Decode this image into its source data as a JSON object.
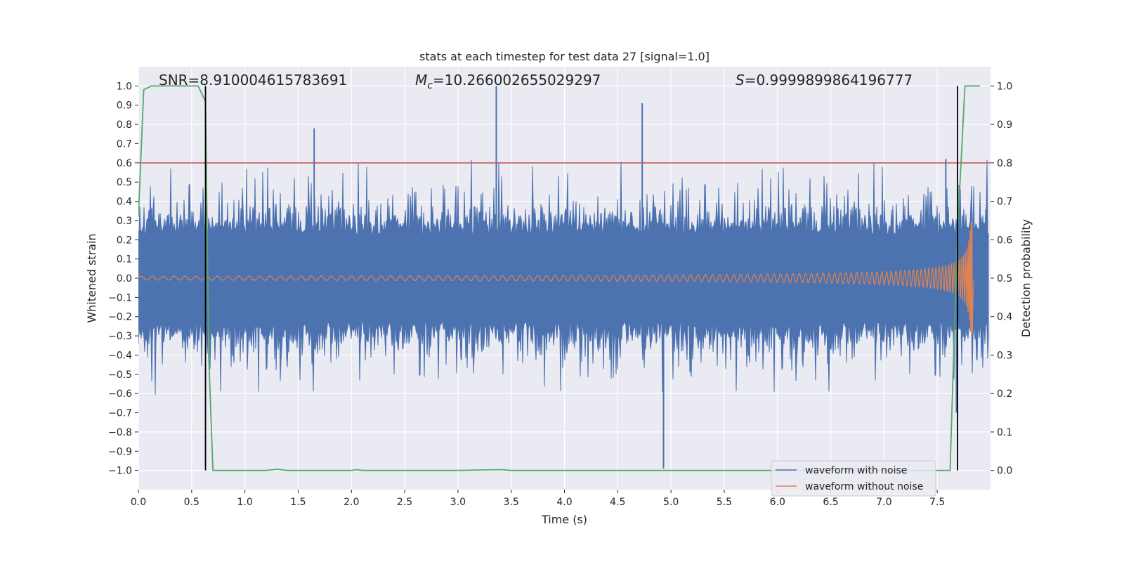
{
  "chart_data": {
    "type": "line",
    "title": "stats at each timestep for test data 27 [signal=1.0]",
    "xlabel": "Time (s)",
    "ylabel": "Whitened strain",
    "y2label": "Detection probability",
    "xlim": [
      0.0,
      8.0
    ],
    "ylim": [
      -1.1,
      1.1
    ],
    "y2lim": [
      -0.05,
      1.05
    ],
    "xticks": [
      0.0,
      0.5,
      1.0,
      1.5,
      2.0,
      2.5,
      3.0,
      3.5,
      4.0,
      4.5,
      5.0,
      5.5,
      6.0,
      6.5,
      7.0,
      7.5
    ],
    "xtick_labels": [
      "0.0",
      "0.5",
      "1.0",
      "1.5",
      "2.0",
      "2.5",
      "3.0",
      "3.5",
      "4.0",
      "4.5",
      "5.0",
      "5.5",
      "6.0",
      "6.5",
      "7.0",
      "7.5"
    ],
    "yticks": [
      1.0,
      0.9,
      0.8,
      0.7,
      0.6,
      0.5,
      0.4,
      0.3,
      0.2,
      0.1,
      0.0,
      -0.1,
      -0.2,
      -0.3,
      -0.4,
      -0.5,
      -0.6,
      -0.7,
      -0.8,
      -0.9,
      -1.0
    ],
    "ytick_labels": [
      "1.0",
      "0.9",
      "0.8",
      "0.7",
      "0.6",
      "0.5",
      "0.4",
      "0.3",
      "0.2",
      "0.1",
      "0.0",
      "−0.1",
      "−0.2",
      "−0.3",
      "−0.4",
      "−0.5",
      "−0.6",
      "−0.7",
      "−0.8",
      "−0.9",
      "−1.0"
    ],
    "y2ticks": [
      1.0,
      0.9,
      0.8,
      0.7,
      0.6,
      0.5,
      0.4,
      0.3,
      0.2,
      0.1,
      0.0
    ],
    "y2tick_labels": [
      "1.0",
      "0.9",
      "0.8",
      "0.7",
      "0.6",
      "0.5",
      "0.4",
      "0.3",
      "0.2",
      "0.1",
      "0.0"
    ],
    "annotations": {
      "snr": "SNR=8.910004615783691",
      "mc_symbol": "M",
      "mc_subscript": "c",
      "mc_value": "=10.266002655029297",
      "s_symbol": "S",
      "s_value": "=0.9999899864196777"
    },
    "threshold": {
      "value": 0.8,
      "axis": "y2",
      "color": "#c44e52"
    },
    "vertical_markers": [
      0.63,
      7.69
    ],
    "series": [
      {
        "name": "waveform with noise",
        "color": "#4c72b0",
        "kind": "noise",
        "envelope_typical": 0.3,
        "envelope_max": 0.63,
        "spikes": [
          {
            "x": 3.36,
            "y": 1.0
          },
          {
            "x": 4.73,
            "y": 0.91
          },
          {
            "x": 4.93,
            "y": -0.99
          },
          {
            "x": 1.65,
            "y": 0.78
          },
          {
            "x": 7.68,
            "y": -0.7
          },
          {
            "x": 7.58,
            "y": 0.62
          }
        ]
      },
      {
        "name": "waveform without noise",
        "color": "#dd8452",
        "kind": "chirp",
        "merger_time": 7.83,
        "peak_amplitude": 0.3,
        "start_amplitude": 0.01
      },
      {
        "name": "detection probability",
        "color": "#55a868",
        "axis": "y2",
        "x": [
          0.0,
          0.05,
          0.12,
          0.2,
          0.3,
          0.4,
          0.5,
          0.56,
          0.63,
          0.66,
          0.7,
          1.0,
          1.2,
          1.3,
          1.4,
          2.0,
          2.05,
          2.1,
          3.0,
          3.4,
          3.5,
          5.0,
          6.0,
          7.0,
          7.5,
          7.62,
          7.69,
          7.76,
          7.9
        ],
        "y": [
          0.66,
          0.99,
          1.0,
          1.0,
          1.0,
          1.0,
          1.0,
          1.0,
          0.96,
          0.3,
          0.0,
          0.0,
          0.0,
          0.003,
          0.0,
          0.0,
          0.002,
          0.0,
          0.0,
          0.002,
          0.0,
          0.0,
          0.0,
          0.0,
          0.0,
          0.0,
          0.62,
          1.0,
          1.0
        ]
      }
    ],
    "legend_placement": "lower-right",
    "legend": [
      "waveform with noise",
      "waveform without noise"
    ],
    "grid": true
  }
}
